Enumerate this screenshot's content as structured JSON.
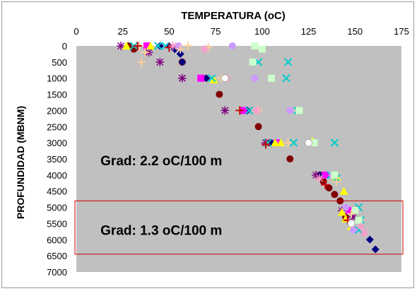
{
  "chart_data": {
    "type": "scatter",
    "title": "TEMPERATURA (oC)",
    "xlabel": "",
    "ylabel": "PROFUNDIDAD (MBNM)",
    "x_axis_position": "top",
    "y_axis_inverted": true,
    "xlim": [
      0,
      175
    ],
    "ylim": [
      0,
      7000
    ],
    "x_ticks": [
      0,
      25,
      50,
      75,
      100,
      125,
      150,
      175
    ],
    "y_ticks": [
      0,
      500,
      1000,
      1500,
      2000,
      2500,
      3000,
      3500,
      4000,
      4500,
      5000,
      5500,
      6000,
      6500,
      7000
    ],
    "grid": false,
    "legend": "none",
    "plot_background": "#c0c0c0",
    "annotations": [
      {
        "text": "Grad: 2.2 oC/100 m",
        "x": 13,
        "y": 3700
      },
      {
        "text": "Grad: 1.3 oC/100 m",
        "x": 13,
        "y": 5850
      }
    ],
    "highlight_box": {
      "x_range": [
        0,
        175
      ],
      "y_range": [
        4800,
        6450
      ],
      "color": "#cc0000"
    },
    "series": [
      {
        "marker": "circle",
        "color": "#800000",
        "points": [
          [
            28,
            0
          ],
          [
            31,
            100
          ],
          [
            57,
            500
          ],
          [
            68,
            1000
          ],
          [
            77,
            1500
          ],
          [
            91,
            2000
          ],
          [
            98,
            2500
          ],
          [
            104,
            3000
          ],
          [
            115,
            3500
          ],
          [
            131,
            4000
          ],
          [
            133,
            4200
          ],
          [
            136,
            4400
          ],
          [
            139,
            4600
          ],
          [
            142,
            4800
          ],
          [
            145,
            5300
          ]
        ]
      },
      {
        "marker": "diamond",
        "color": "#000080",
        "points": [
          [
            45,
            0
          ],
          [
            50,
            0
          ],
          [
            53,
            100
          ],
          [
            56,
            250
          ],
          [
            57,
            500
          ],
          [
            70,
            1000
          ],
          [
            92,
            2000
          ],
          [
            105,
            3000
          ],
          [
            131,
            4000
          ],
          [
            158,
            6000
          ],
          [
            161,
            6300
          ]
        ]
      },
      {
        "marker": "star",
        "color": "#800080",
        "points": [
          [
            24,
            0
          ],
          [
            39,
            200
          ],
          [
            45,
            500
          ],
          [
            57,
            1000
          ],
          [
            80,
            2000
          ],
          [
            102,
            3000
          ],
          [
            129,
            4000
          ],
          [
            143,
            5100
          ],
          [
            149,
            5300
          ]
        ]
      },
      {
        "marker": "square",
        "color": "#ff00ff",
        "points": [
          [
            38,
            0
          ],
          [
            67,
            1000
          ],
          [
            90,
            2000
          ],
          [
            108,
            3000
          ],
          [
            134,
            4000
          ],
          [
            147,
            5100
          ]
        ]
      },
      {
        "marker": "triangle",
        "color": "#ffff00",
        "points": [
          [
            27,
            0
          ],
          [
            40,
            0
          ],
          [
            74,
            1050
          ],
          [
            107,
            3000
          ],
          [
            110,
            3000
          ],
          [
            127,
            2950
          ],
          [
            140,
            4050
          ],
          [
            144,
            4500
          ],
          [
            143,
            5150
          ],
          [
            145,
            5350
          ],
          [
            148,
            5600
          ]
        ]
      },
      {
        "marker": "cross",
        "color": "#00cccc",
        "points": [
          [
            31,
            0
          ],
          [
            44,
            0
          ],
          [
            48,
            0
          ],
          [
            73,
            1000
          ],
          [
            93,
            2000
          ],
          [
            98,
            500
          ],
          [
            103,
            3000
          ],
          [
            114,
            500
          ],
          [
            113,
            1000
          ],
          [
            117,
            3000
          ],
          [
            119,
            2000
          ],
          [
            139,
            3000
          ],
          [
            137,
            4000
          ],
          [
            140,
            4100
          ],
          [
            152,
            5000
          ],
          [
            153,
            5400
          ],
          [
            152,
            5700
          ]
        ]
      },
      {
        "marker": "circle",
        "color": "#cc99ff",
        "points": [
          [
            55,
            0
          ],
          [
            84,
            0
          ],
          [
            80,
            1000
          ],
          [
            96,
            1000
          ],
          [
            115,
            2000
          ],
          [
            126,
            3000
          ],
          [
            138,
            4000
          ],
          [
            145,
            5000
          ],
          [
            149,
            5700
          ]
        ]
      },
      {
        "marker": "square",
        "color": "#ccffcc",
        "points": [
          [
            96,
            0
          ],
          [
            100,
            100
          ],
          [
            95,
            500
          ],
          [
            105,
            1000
          ],
          [
            120,
            2000
          ],
          [
            128,
            3000
          ],
          [
            139,
            4000
          ],
          [
            150,
            5100
          ],
          [
            152,
            5400
          ]
        ]
      },
      {
        "marker": "plus",
        "color": "#ffcc99",
        "points": [
          [
            34,
            0
          ],
          [
            37,
            200
          ],
          [
            35,
            500
          ],
          [
            56,
            100
          ],
          [
            60,
            0
          ],
          [
            71,
            50
          ],
          [
            78,
            1000
          ],
          [
            98,
            2000
          ],
          [
            114,
            3000
          ],
          [
            140,
            4200
          ],
          [
            148,
            5200
          ]
        ]
      },
      {
        "marker": "plus",
        "color": "#cc0000",
        "points": [
          [
            33,
            0
          ],
          [
            50,
            50
          ],
          [
            88,
            2000
          ],
          [
            102,
            3050
          ],
          [
            134,
            4300
          ],
          [
            146,
            5400
          ]
        ]
      },
      {
        "marker": "star",
        "color": "#ff99cc",
        "points": [
          [
            52,
            0
          ],
          [
            69,
            100
          ],
          [
            81,
            1000
          ],
          [
            97,
            2000
          ],
          [
            131,
            4100
          ],
          [
            153,
            5600
          ],
          [
            155,
            5800
          ]
        ]
      },
      {
        "marker": "circle",
        "color": "#ffffff",
        "points": [
          [
            80,
            1000
          ],
          [
            125,
            3000
          ],
          [
            148,
            5500
          ]
        ]
      }
    ]
  }
}
